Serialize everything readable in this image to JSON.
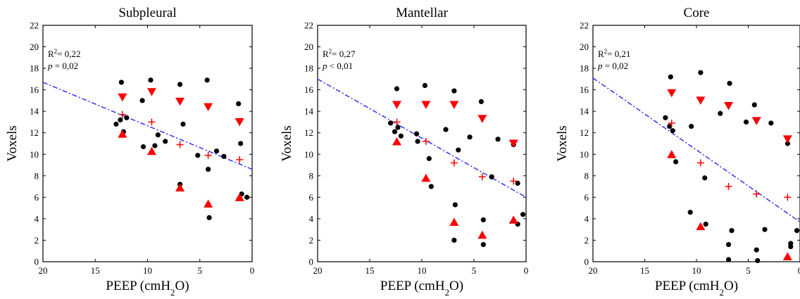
{
  "xlabel": "PEEP (cmH",
  "xlabel_sub": "2",
  "xlabel_end": "O)",
  "ylabel": "Voxels",
  "chart_data": [
    {
      "type": "scatter",
      "title": "Subpleural",
      "stats": {
        "r2_prefix": "R",
        "r2_sup": "2",
        "r2_value": "= 0,22",
        "p_symbol": "p",
        "p_value": "= 0,02"
      },
      "xlim": [
        20,
        0
      ],
      "ylim": [
        0,
        22
      ],
      "xticks": [
        "20",
        "15",
        "10",
        "5",
        "0"
      ],
      "yticks": [
        "0",
        "2",
        "4",
        "6",
        "8",
        "10",
        "12",
        "14",
        "16",
        "18",
        "20",
        "22"
      ],
      "colors": {
        "points": "#000000",
        "markers": "#ff0000",
        "fit": "#3333ff"
      },
      "fit_line": {
        "x": [
          20,
          0
        ],
        "y": [
          16.7,
          8.6
        ]
      },
      "series": [
        {
          "marker": "circle",
          "points": [
            [
              13,
              12.8
            ],
            [
              12.6,
              13.2
            ],
            [
              12.5,
              16.7
            ],
            [
              12.3,
              12.1
            ],
            [
              12,
              13.4
            ],
            [
              10.5,
              15
            ],
            [
              10.4,
              10.7
            ],
            [
              9.7,
              16.9
            ],
            [
              9.3,
              10.8
            ],
            [
              9,
              11.8
            ],
            [
              8.3,
              11.2
            ],
            [
              6.9,
              16.5
            ],
            [
              6.9,
              7.2
            ],
            [
              6.6,
              12.8
            ],
            [
              5.2,
              9.9
            ],
            [
              4.3,
              16.9
            ],
            [
              4.2,
              8.6
            ],
            [
              4.1,
              4.1
            ],
            [
              3.4,
              10.3
            ],
            [
              2.7,
              9.8
            ],
            [
              1.3,
              14.7
            ],
            [
              1.1,
              11
            ],
            [
              1,
              6.3
            ],
            [
              0.5,
              6
            ]
          ]
        },
        {
          "marker": "triangle-down",
          "points": [
            [
              12.4,
              15.3
            ],
            [
              9.6,
              15.8
            ],
            [
              6.9,
              14.9
            ],
            [
              4.2,
              14.4
            ],
            [
              1.2,
              13
            ]
          ]
        },
        {
          "marker": "cross",
          "points": [
            [
              12.4,
              13.7
            ],
            [
              9.6,
              13
            ],
            [
              6.9,
              10.9
            ],
            [
              4.2,
              9.9
            ],
            [
              1.2,
              9.5
            ]
          ]
        },
        {
          "marker": "triangle-up",
          "points": [
            [
              12.4,
              11.9
            ],
            [
              9.6,
              10.3
            ],
            [
              6.9,
              6.9
            ],
            [
              4.2,
              5.4
            ],
            [
              1.2,
              6
            ]
          ]
        }
      ]
    },
    {
      "type": "scatter",
      "title": "Mantellar",
      "stats": {
        "r2_prefix": "R",
        "r2_sup": "2",
        "r2_value": "= 0,27",
        "p_symbol": "p",
        "p_value": "< 0,01"
      },
      "xlim": [
        20,
        0
      ],
      "ylim": [
        0,
        22
      ],
      "xticks": [
        "20",
        "15",
        "10",
        "5",
        "0"
      ],
      "yticks": [
        "0",
        "2",
        "4",
        "6",
        "8",
        "10",
        "12",
        "14",
        "16",
        "18",
        "20",
        "22"
      ],
      "colors": {
        "points": "#000000",
        "markers": "#ff0000",
        "fit": "#3333ff"
      },
      "fit_line": {
        "x": [
          20,
          0
        ],
        "y": [
          17,
          6
        ]
      },
      "series": [
        {
          "marker": "circle",
          "points": [
            [
              13,
              12.9
            ],
            [
              12.6,
              12.1
            ],
            [
              12.4,
              16.1
            ],
            [
              12.3,
              12.5
            ],
            [
              12,
              11.7
            ],
            [
              10.5,
              11.9
            ],
            [
              10.4,
              11.2
            ],
            [
              9.7,
              16.4
            ],
            [
              9.3,
              9.6
            ],
            [
              9.1,
              7
            ],
            [
              7.7,
              12.3
            ],
            [
              6.9,
              15.9
            ],
            [
              6.8,
              5.3
            ],
            [
              6.5,
              10.4
            ],
            [
              5.4,
              11.6
            ],
            [
              4.3,
              14.9
            ],
            [
              4.1,
              3.9
            ],
            [
              4.1,
              1.6
            ],
            [
              3.3,
              7.9
            ],
            [
              2.7,
              11.4
            ],
            [
              1.2,
              10.9
            ],
            [
              0.8,
              7.3
            ],
            [
              0.8,
              3.5
            ],
            [
              0.3,
              4.4
            ],
            [
              6.9,
              2
            ]
          ]
        },
        {
          "marker": "triangle-down",
          "points": [
            [
              12.4,
              14.6
            ],
            [
              9.6,
              14.6
            ],
            [
              6.9,
              14.6
            ],
            [
              4.2,
              13.3
            ],
            [
              1.2,
              11
            ]
          ]
        },
        {
          "marker": "cross",
          "points": [
            [
              12.4,
              13
            ],
            [
              9.6,
              11.2
            ],
            [
              6.9,
              9.2
            ],
            [
              4.2,
              7.9
            ],
            [
              1.2,
              7.5
            ]
          ]
        },
        {
          "marker": "triangle-up",
          "points": [
            [
              12.4,
              11.2
            ],
            [
              9.6,
              7.8
            ],
            [
              6.9,
              3.7
            ],
            [
              4.2,
              2.5
            ],
            [
              1.2,
              3.9
            ]
          ]
        }
      ]
    },
    {
      "type": "scatter",
      "title": "Core",
      "stats": {
        "r2_prefix": "R",
        "r2_sup": "2",
        "r2_value": "= 0,21",
        "p_symbol": "p",
        "p_value": "= 0,02"
      },
      "xlim": [
        20,
        0
      ],
      "ylim": [
        0,
        22
      ],
      "xticks": [
        "20",
        "15",
        "10",
        "5",
        "0"
      ],
      "yticks": [
        "0",
        "2",
        "4",
        "6",
        "8",
        "10",
        "12",
        "14",
        "16",
        "18",
        "20",
        "22"
      ],
      "colors": {
        "points": "#000000",
        "markers": "#ff0000",
        "fit": "#3333ff"
      },
      "fit_line": {
        "x": [
          20,
          0
        ],
        "y": [
          17.1,
          3.7
        ]
      },
      "series": [
        {
          "marker": "circle",
          "points": [
            [
              13,
              13.4
            ],
            [
              12.6,
              12.6
            ],
            [
              12.5,
              17.2
            ],
            [
              12.3,
              12.2
            ],
            [
              12,
              9.3
            ],
            [
              10.5,
              12.6
            ],
            [
              10.6,
              4.6
            ],
            [
              9.6,
              17.6
            ],
            [
              9.2,
              7.8
            ],
            [
              9.1,
              3.5
            ],
            [
              7.7,
              13.8
            ],
            [
              6.8,
              16.6
            ],
            [
              6.6,
              2.9
            ],
            [
              6.9,
              1.6
            ],
            [
              6.9,
              0.2
            ],
            [
              5.2,
              13
            ],
            [
              4.4,
              14.6
            ],
            [
              4.2,
              1.1
            ],
            [
              4.1,
              0.1
            ],
            [
              3.4,
              3
            ],
            [
              2.8,
              12.9
            ],
            [
              1.2,
              11
            ],
            [
              0.9,
              1.7
            ],
            [
              0.9,
              1.4
            ],
            [
              0.3,
              2.9
            ]
          ]
        },
        {
          "marker": "triangle-down",
          "points": [
            [
              12.4,
              15.7
            ],
            [
              9.6,
              15
            ],
            [
              6.9,
              14.5
            ],
            [
              4.2,
              13.1
            ],
            [
              1.2,
              11.4
            ]
          ]
        },
        {
          "marker": "cross",
          "points": [
            [
              12.4,
              12.9
            ],
            [
              9.6,
              9.2
            ],
            [
              6.9,
              7
            ],
            [
              4.2,
              6.3
            ],
            [
              1.2,
              6
            ]
          ]
        },
        {
          "marker": "triangle-up",
          "points": [
            [
              12.4,
              10
            ],
            [
              9.6,
              3.3
            ],
            [
              1.2,
              0.5
            ]
          ]
        }
      ]
    }
  ]
}
